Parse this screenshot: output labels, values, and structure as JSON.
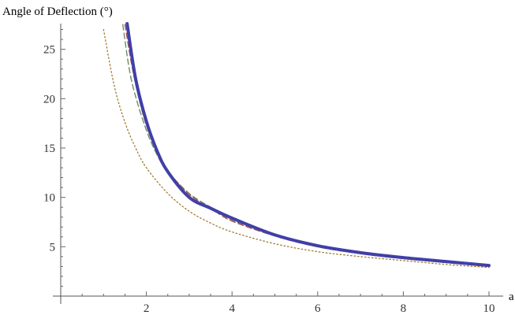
{
  "chart_data": {
    "type": "line",
    "title": "",
    "xlabel": "a",
    "ylabel": "Angle of Deflection (°)",
    "xlim": [
      0,
      10
    ],
    "ylim": [
      0,
      27.6
    ],
    "x_ticks": [
      2,
      4,
      6,
      8,
      10
    ],
    "x_tick_labels": [
      "2",
      "4",
      "6",
      "8",
      "10"
    ],
    "y_ticks": [
      5,
      10,
      15,
      20,
      25
    ],
    "y_tick_labels": [
      "5",
      "10",
      "15",
      "20",
      "25"
    ],
    "grid": false,
    "legend": "none",
    "series": [
      {
        "color": "#4040a8",
        "style": "solid-thick",
        "x": [
          1.55,
          1.75,
          2.0,
          2.25,
          2.5,
          3.0,
          3.5,
          4.0,
          5.0,
          6.0,
          7.0,
          8.0,
          9.0,
          10.0
        ],
        "y": [
          27.6,
          22.0,
          17.7,
          14.7,
          12.6,
          10.0,
          8.9,
          7.9,
          6.2,
          5.1,
          4.4,
          3.9,
          3.5,
          3.1
        ]
      },
      {
        "color": "#6b8e6b",
        "style": "dashed",
        "x": [
          1.45,
          1.6,
          1.75,
          2.0,
          2.25,
          2.5,
          3.0,
          3.5,
          4.0,
          5.0,
          6.0,
          7.0,
          8.0,
          9.0,
          10.0
        ],
        "y": [
          27.5,
          23.0,
          20.2,
          16.8,
          14.3,
          12.6,
          10.4,
          9.0,
          7.7,
          6.1,
          5.0,
          4.3,
          3.8,
          3.4,
          3.0
        ]
      },
      {
        "color": "#b05050",
        "style": "dashed",
        "x": [
          1.5,
          1.65,
          1.8,
          2.0,
          2.25,
          2.5,
          3.0,
          3.5,
          4.0,
          5.0,
          6.0,
          7.0,
          8.0,
          9.0,
          10.0
        ],
        "y": [
          27.5,
          23.6,
          20.5,
          17.3,
          14.6,
          12.7,
          10.3,
          8.9,
          7.6,
          6.1,
          5.0,
          4.3,
          3.8,
          3.4,
          3.0
        ]
      },
      {
        "color": "#a07a30",
        "style": "dotted",
        "x": [
          1.0,
          1.25,
          1.5,
          1.75,
          2.0,
          2.5,
          3.0,
          3.5,
          4.0,
          5.0,
          6.0,
          7.0,
          8.0,
          9.0,
          10.0
        ],
        "y": [
          27.0,
          21.3,
          17.6,
          15.0,
          13.0,
          10.4,
          8.6,
          7.4,
          6.5,
          5.3,
          4.5,
          4.0,
          3.6,
          3.2,
          2.9
        ]
      }
    ]
  }
}
